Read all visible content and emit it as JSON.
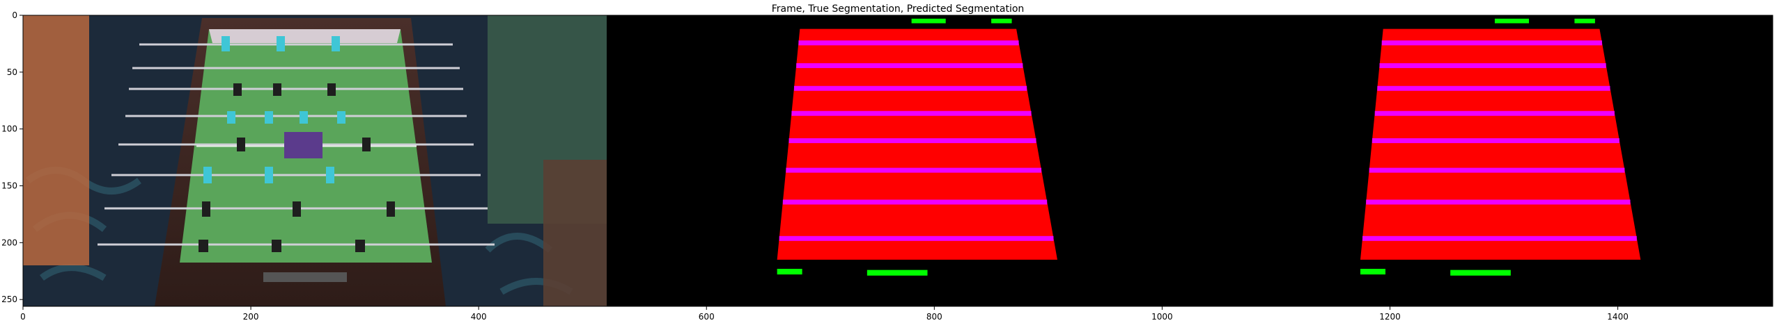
{
  "chart_data": {
    "type": "image",
    "title": "Frame, True Segmentation, Predicted Segmentation",
    "xlim": [
      0,
      1536
    ],
    "ylim": [
      256,
      0
    ],
    "xticks": [
      0,
      200,
      400,
      600,
      800,
      1000,
      1200,
      1400
    ],
    "yticks": [
      0,
      50,
      100,
      150,
      200,
      250
    ],
    "panels": [
      {
        "name": "Frame",
        "x_range": [
          0,
          512
        ],
        "content": "foosball table photograph"
      },
      {
        "name": "True Segmentation",
        "x_range": [
          512,
          1024
        ],
        "content": "segmentation mask"
      },
      {
        "name": "Predicted Segmentation",
        "x_range": [
          1024,
          1536
        ],
        "content": "segmentation mask"
      }
    ],
    "mask_classes": [
      {
        "class": "table",
        "color": "#ff0000"
      },
      {
        "class": "rods",
        "color": "#ee00ff"
      },
      {
        "class": "goals",
        "color": "#00ff00"
      }
    ]
  }
}
